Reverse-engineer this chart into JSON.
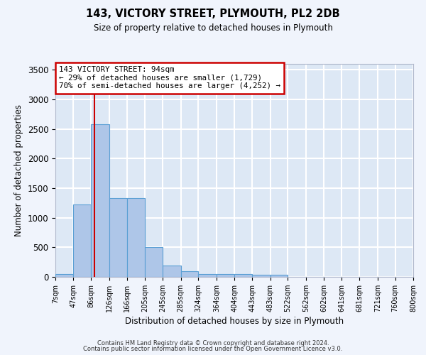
{
  "title": "143, VICTORY STREET, PLYMOUTH, PL2 2DB",
  "subtitle": "Size of property relative to detached houses in Plymouth",
  "xlabel": "Distribution of detached houses by size in Plymouth",
  "ylabel": "Number of detached properties",
  "bar_color": "#aec6e8",
  "bar_edge_color": "#5a9fd4",
  "background_color": "#dde8f5",
  "grid_color": "#ffffff",
  "bin_edges": [
    7,
    47,
    86,
    126,
    166,
    205,
    245,
    285,
    324,
    364,
    404,
    443,
    483,
    522,
    562,
    602,
    641,
    681,
    721,
    760,
    800
  ],
  "bin_labels": [
    "7sqm",
    "47sqm",
    "86sqm",
    "126sqm",
    "166sqm",
    "205sqm",
    "245sqm",
    "285sqm",
    "324sqm",
    "364sqm",
    "404sqm",
    "443sqm",
    "483sqm",
    "522sqm",
    "562sqm",
    "602sqm",
    "641sqm",
    "681sqm",
    "721sqm",
    "760sqm",
    "800sqm"
  ],
  "bar_heights": [
    50,
    1220,
    2580,
    1330,
    1330,
    500,
    190,
    100,
    50,
    50,
    50,
    35,
    35,
    5,
    5,
    5,
    5,
    5,
    5,
    5
  ],
  "property_size": 94,
  "property_label": "143 VICTORY STREET: 94sqm",
  "annotation_line1": "← 29% of detached houses are smaller (1,729)",
  "annotation_line2": "70% of semi-detached houses are larger (4,252) →",
  "vline_color": "#cc0000",
  "annotation_box_color": "#cc0000",
  "ylim": [
    0,
    3600
  ],
  "yticks": [
    0,
    500,
    1000,
    1500,
    2000,
    2500,
    3000,
    3500
  ],
  "footer_line1": "Contains HM Land Registry data © Crown copyright and database right 2024.",
  "footer_line2": "Contains public sector information licensed under the Open Government Licence v3.0."
}
